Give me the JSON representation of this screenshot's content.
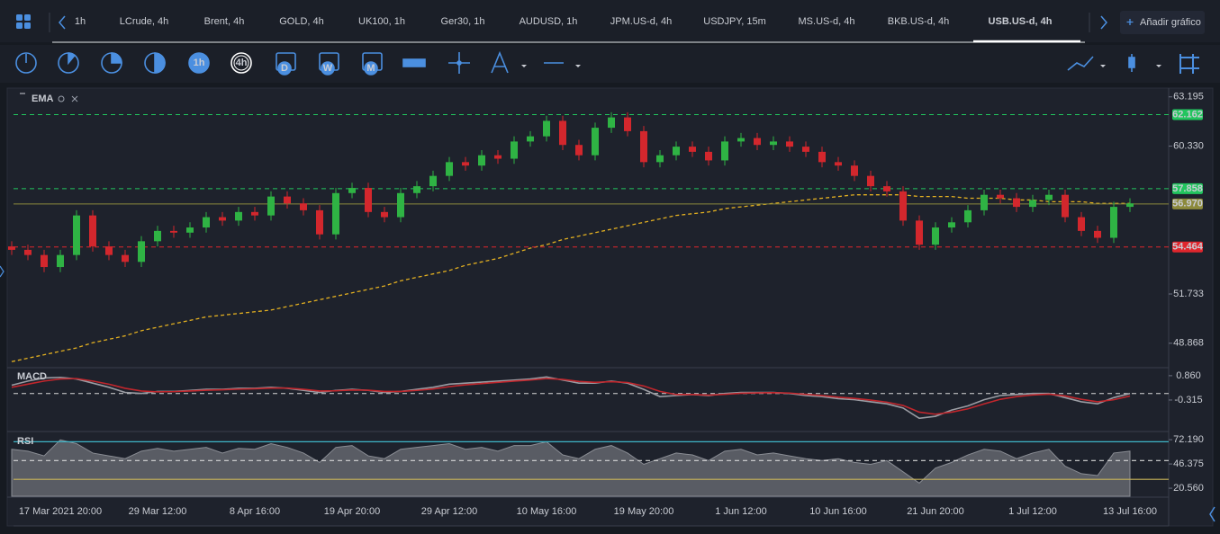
{
  "tabs": [
    {
      "label": "1h"
    },
    {
      "label": "LCrude, 4h"
    },
    {
      "label": "Brent, 4h"
    },
    {
      "label": "GOLD, 4h"
    },
    {
      "label": "UK100, 1h"
    },
    {
      "label": "Ger30, 1h"
    },
    {
      "label": "AUDUSD, 1h"
    },
    {
      "label": "JPM.US-d, 4h"
    },
    {
      "label": "USDJPY, 15m"
    },
    {
      "label": "MS.US-d, 4h"
    },
    {
      "label": "BKB.US-d, 4h"
    },
    {
      "label": "USB.US-d, 4h",
      "active": true
    }
  ],
  "add_button": "Añadir gráfico",
  "toolbar": {
    "timeframes": [
      "1h",
      "4h",
      "D",
      "W",
      "M"
    ]
  },
  "chart_data": {
    "type": "candlestick",
    "categories": [
      null,
      null,
      null,
      "17 Mar 2021 20:00",
      null,
      null,
      null,
      null,
      null,
      "29 Mar 12:00",
      null,
      null,
      null,
      null,
      null,
      "8 Apr 16:00",
      null,
      null,
      null,
      null,
      null,
      "19 Apr 20:00",
      null,
      null,
      null,
      null,
      null,
      "29 Apr 12:00",
      null,
      null,
      null,
      null,
      null,
      "10 May 16:00",
      null,
      null,
      null,
      null,
      null,
      "19 May 20:00",
      null,
      null,
      null,
      null,
      null,
      "1 Jun 12:00",
      null,
      null,
      null,
      null,
      null,
      "10 Jun 16:00",
      null,
      null,
      null,
      null,
      null,
      "21 Jun 20:00",
      null,
      null,
      null,
      null,
      null,
      "1 Jul 12:00",
      null,
      null,
      null,
      null,
      null,
      "13 Jul 16:00"
    ],
    "open": [
      54.5,
      54.3,
      54.0,
      53.3,
      54.0,
      56.3,
      54.5,
      54.0,
      53.6,
      54.8,
      55.4,
      55.3,
      55.6,
      56.2,
      56.0,
      56.5,
      56.3,
      57.4,
      57.0,
      56.6,
      55.2,
      57.6,
      57.9,
      56.5,
      56.2,
      57.6,
      58.0,
      58.6,
      59.4,
      59.2,
      59.8,
      59.6,
      60.6,
      60.9,
      61.8,
      60.4,
      59.8,
      61.4,
      62.0,
      61.2,
      59.4,
      59.8,
      60.3,
      60.0,
      59.5,
      60.6,
      60.8,
      60.4,
      60.6,
      60.3,
      60.0,
      59.4,
      59.2,
      58.6,
      58.0,
      57.7,
      56.0,
      54.6,
      55.6,
      55.9,
      56.6,
      57.5,
      57.3,
      56.8,
      57.2,
      57.5,
      56.2,
      55.4,
      55.0,
      56.8
    ],
    "high": [
      54.8,
      54.6,
      54.3,
      54.3,
      56.6,
      56.6,
      54.8,
      54.3,
      55.1,
      55.7,
      55.7,
      55.9,
      56.5,
      56.5,
      56.8,
      56.8,
      57.7,
      57.7,
      57.3,
      56.9,
      57.9,
      58.2,
      58.2,
      56.8,
      57.9,
      58.3,
      58.9,
      59.7,
      59.7,
      60.1,
      60.1,
      60.9,
      61.2,
      62.1,
      62.1,
      60.7,
      61.7,
      62.3,
      62.3,
      61.5,
      60.1,
      60.6,
      60.6,
      60.3,
      60.9,
      61.1,
      61.1,
      60.9,
      60.9,
      60.6,
      60.3,
      59.7,
      59.5,
      58.9,
      58.3,
      58.0,
      56.3,
      55.9,
      56.2,
      56.9,
      57.8,
      57.8,
      57.6,
      57.5,
      57.8,
      57.8,
      56.5,
      55.7,
      57.1,
      57.3
    ],
    "low": [
      54.0,
      53.7,
      53.0,
      53.0,
      53.7,
      54.2,
      53.7,
      53.3,
      53.3,
      54.5,
      55.0,
      55.0,
      55.3,
      55.7,
      55.7,
      56.0,
      56.0,
      56.7,
      56.3,
      54.9,
      54.9,
      57.3,
      56.2,
      55.9,
      55.9,
      57.3,
      57.7,
      58.3,
      58.9,
      58.9,
      59.3,
      59.3,
      60.3,
      60.6,
      60.1,
      59.5,
      59.5,
      61.1,
      60.9,
      59.1,
      59.1,
      59.5,
      59.7,
      59.2,
      59.2,
      60.3,
      60.1,
      60.1,
      60.0,
      59.7,
      59.1,
      58.9,
      58.3,
      57.7,
      57.4,
      55.7,
      54.3,
      54.3,
      55.3,
      55.6,
      56.3,
      57.0,
      56.5,
      56.5,
      56.9,
      55.9,
      55.1,
      54.7,
      54.7,
      56.5
    ],
    "close": [
      54.3,
      54.0,
      53.3,
      54.0,
      56.3,
      54.5,
      54.0,
      53.6,
      54.8,
      55.4,
      55.3,
      55.6,
      56.2,
      56.0,
      56.5,
      56.3,
      57.4,
      57.0,
      56.6,
      55.2,
      57.6,
      57.9,
      56.5,
      56.2,
      57.6,
      58.0,
      58.6,
      59.4,
      59.2,
      59.8,
      59.6,
      60.6,
      60.9,
      61.8,
      60.4,
      59.8,
      61.4,
      62.0,
      61.2,
      59.4,
      59.8,
      60.3,
      60.0,
      59.5,
      60.6,
      60.8,
      60.4,
      60.6,
      60.3,
      60.0,
      59.4,
      59.2,
      58.6,
      58.0,
      57.7,
      56.0,
      54.6,
      55.6,
      55.9,
      56.6,
      57.5,
      57.3,
      56.8,
      57.2,
      57.5,
      56.2,
      55.4,
      55.0,
      56.8,
      57.0
    ],
    "up_color": "#2fb344",
    "down_color": "#d3272d",
    "series": [
      {
        "name": "EMA",
        "color": "#e3b021",
        "values": [
          47.8,
          48.0,
          48.2,
          48.4,
          48.6,
          48.9,
          49.1,
          49.3,
          49.6,
          49.8,
          50.0,
          50.2,
          50.4,
          50.5,
          50.6,
          50.7,
          50.8,
          51.0,
          51.2,
          51.4,
          51.6,
          51.8,
          52.0,
          52.2,
          52.5,
          52.7,
          52.9,
          53.1,
          53.4,
          53.6,
          53.8,
          54.1,
          54.4,
          54.6,
          54.9,
          55.1,
          55.3,
          55.5,
          55.7,
          55.9,
          56.1,
          56.3,
          56.4,
          56.5,
          56.7,
          56.8,
          56.9,
          57.0,
          57.1,
          57.2,
          57.3,
          57.4,
          57.5,
          57.5,
          57.5,
          57.5,
          57.4,
          57.4,
          57.4,
          57.3,
          57.3,
          57.3,
          57.2,
          57.2,
          57.1,
          57.1,
          57.1,
          57.0,
          57.0,
          57.0
        ]
      }
    ],
    "ylim": [
      47.5,
      63.6
    ],
    "yticks": [
      63.195,
      {
        "value": 60.33,
        "label": "60.330"
      },
      51.733,
      48.868
    ],
    "price_lines": [
      {
        "value": 62.162,
        "color": "#22c55e",
        "dashed": true
      },
      {
        "value": 57.858,
        "color": "#22c55e",
        "dashed": true
      },
      {
        "value": 56.97,
        "label": "56.970",
        "color": "#8c8a3c",
        "dashed": false
      },
      {
        "value": 54.464,
        "color": "#e0262d",
        "dashed": true
      }
    ],
    "macd": {
      "name": "MACD",
      "ylim": [
        -1.75,
        1.16
      ],
      "yticks": [
        {
          "value": 0.86,
          "label": "0.860"
        },
        -0.315
      ],
      "levels": [
        0
      ],
      "series": [
        {
          "color": "#9a9ca3",
          "values": [
            0.4,
            0.6,
            0.75,
            0.78,
            0.7,
            0.5,
            0.3,
            0.05,
            0.0,
            0.1,
            0.1,
            0.15,
            0.2,
            0.2,
            0.25,
            0.25,
            0.3,
            0.25,
            0.15,
            0.05,
            0.15,
            0.2,
            0.15,
            0.05,
            0.1,
            0.2,
            0.3,
            0.45,
            0.5,
            0.55,
            0.6,
            0.65,
            0.7,
            0.8,
            0.65,
            0.5,
            0.5,
            0.6,
            0.5,
            0.2,
            -0.15,
            -0.1,
            -0.05,
            -0.1,
            0.0,
            0.05,
            0.05,
            0.05,
            0.0,
            -0.1,
            -0.15,
            -0.25,
            -0.3,
            -0.4,
            -0.5,
            -0.7,
            -1.2,
            -1.1,
            -0.8,
            -0.6,
            -0.3,
            -0.1,
            -0.05,
            0.0,
            0.0,
            -0.2,
            -0.4,
            -0.5,
            -0.2,
            0.0
          ]
        },
        {
          "color": "#c0262c",
          "values": [
            0.3,
            0.45,
            0.6,
            0.7,
            0.72,
            0.6,
            0.45,
            0.25,
            0.12,
            0.08,
            0.09,
            0.12,
            0.16,
            0.18,
            0.21,
            0.23,
            0.26,
            0.26,
            0.2,
            0.12,
            0.13,
            0.17,
            0.16,
            0.1,
            0.1,
            0.15,
            0.22,
            0.33,
            0.42,
            0.48,
            0.54,
            0.6,
            0.65,
            0.72,
            0.68,
            0.58,
            0.54,
            0.57,
            0.53,
            0.36,
            0.1,
            -0.05,
            -0.05,
            -0.08,
            -0.04,
            0.01,
            0.03,
            0.04,
            0.02,
            -0.04,
            -0.1,
            -0.18,
            -0.24,
            -0.32,
            -0.42,
            -0.58,
            -0.9,
            -1.0,
            -0.9,
            -0.74,
            -0.5,
            -0.28,
            -0.15,
            -0.07,
            -0.03,
            -0.12,
            -0.28,
            -0.4,
            -0.3,
            -0.12
          ]
        }
      ]
    },
    "rsi": {
      "name": "RSI",
      "ylim": [
        12,
        79
      ],
      "yticks": [
        {
          "value": 72.19,
          "label": "72.190"
        },
        46.375,
        {
          "value": 20.56,
          "label": "20.560"
        }
      ],
      "levels": [
        {
          "value": 70,
          "color": "#3fb6c8",
          "dashed": false
        },
        {
          "value": 50,
          "color": "#d8d8d8",
          "dashed": true
        },
        {
          "value": 30,
          "color": "#c9b458",
          "dashed": false
        }
      ],
      "color": "#8a8d94",
      "values": [
        62,
        60,
        55,
        72,
        68,
        58,
        55,
        52,
        60,
        63,
        60,
        62,
        64,
        58,
        63,
        62,
        68,
        64,
        58,
        48,
        64,
        66,
        55,
        52,
        62,
        64,
        66,
        68,
        62,
        64,
        60,
        66,
        66,
        70,
        56,
        52,
        62,
        66,
        58,
        46,
        52,
        58,
        56,
        50,
        60,
        62,
        56,
        58,
        55,
        52,
        50,
        52,
        48,
        46,
        50,
        38,
        26,
        42,
        48,
        56,
        62,
        60,
        52,
        58,
        62,
        44,
        36,
        34,
        58,
        60
      ]
    }
  }
}
